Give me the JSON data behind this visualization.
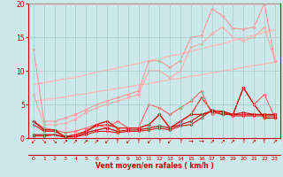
{
  "background_color": "#cce8e8",
  "grid_color": "#aacece",
  "x_values": [
    0,
    1,
    2,
    3,
    4,
    5,
    6,
    7,
    8,
    9,
    10,
    11,
    12,
    13,
    14,
    15,
    16,
    17,
    18,
    19,
    20,
    21,
    22,
    23
  ],
  "xlabel": "Vent moyen/en rafales ( km/h )",
  "ylim": [
    0,
    20
  ],
  "yticks": [
    0,
    5,
    10,
    15,
    20
  ],
  "series": [
    {
      "name": "upper_band_top",
      "color": "#ffbbbb",
      "linewidth": 1.0,
      "marker": null,
      "markersize": 0,
      "values": [
        8.0,
        8.2,
        8.5,
        8.8,
        9.0,
        9.4,
        9.8,
        10.1,
        10.4,
        10.8,
        11.1,
        11.5,
        11.8,
        12.2,
        12.5,
        12.9,
        13.3,
        13.7,
        14.0,
        14.5,
        14.9,
        15.3,
        15.7,
        16.1
      ]
    },
    {
      "name": "upper_band_bottom",
      "color": "#ffbbbb",
      "linewidth": 1.0,
      "marker": null,
      "markersize": 0,
      "values": [
        5.5,
        5.7,
        5.9,
        6.1,
        6.4,
        6.6,
        6.9,
        7.1,
        7.4,
        7.6,
        7.9,
        8.1,
        8.4,
        8.7,
        8.9,
        9.2,
        9.4,
        9.7,
        10.0,
        10.2,
        10.5,
        10.8,
        11.0,
        11.3
      ]
    },
    {
      "name": "upper_line1",
      "color": "#ff9999",
      "linewidth": 0.8,
      "marker": "D",
      "markersize": 1.8,
      "values": [
        13.2,
        2.5,
        2.5,
        3.0,
        3.5,
        4.2,
        5.0,
        5.5,
        6.0,
        6.5,
        7.0,
        11.5,
        11.5,
        10.5,
        11.5,
        15.0,
        15.2,
        19.2,
        18.2,
        16.3,
        16.2,
        16.5,
        20.0,
        11.5
      ]
    },
    {
      "name": "upper_line2",
      "color": "#ffaaaa",
      "linewidth": 0.8,
      "marker": "D",
      "markersize": 1.8,
      "values": [
        6.5,
        2.0,
        2.0,
        2.2,
        2.8,
        3.8,
        4.5,
        5.0,
        5.5,
        6.0,
        6.5,
        10.0,
        10.0,
        9.0,
        10.0,
        13.5,
        14.0,
        15.5,
        16.5,
        15.0,
        14.5,
        15.0,
        16.5,
        11.5
      ]
    },
    {
      "name": "mid_line",
      "color": "#ff6666",
      "linewidth": 0.8,
      "marker": "D",
      "markersize": 1.8,
      "values": [
        2.5,
        1.5,
        1.2,
        0.8,
        1.0,
        1.5,
        2.0,
        1.5,
        2.5,
        1.5,
        1.5,
        5.0,
        4.5,
        3.5,
        4.5,
        5.5,
        7.0,
        3.5,
        4.0,
        3.5,
        7.5,
        5.0,
        6.5,
        3.0
      ]
    },
    {
      "name": "lower_line1",
      "color": "#cc0000",
      "linewidth": 0.9,
      "marker": "D",
      "markersize": 1.8,
      "values": [
        2.5,
        1.2,
        1.2,
        0.2,
        0.5,
        1.0,
        2.0,
        2.5,
        1.5,
        1.5,
        1.5,
        2.0,
        3.5,
        1.5,
        2.5,
        3.5,
        3.5,
        4.0,
        3.5,
        3.5,
        7.5,
        5.0,
        3.0,
        3.0
      ]
    },
    {
      "name": "lower_line2",
      "color": "#ee2222",
      "linewidth": 0.8,
      "marker": "D",
      "markersize": 1.6,
      "values": [
        2.0,
        1.0,
        1.0,
        0.2,
        0.5,
        1.0,
        1.8,
        2.0,
        1.5,
        1.5,
        1.5,
        2.0,
        3.5,
        1.5,
        2.5,
        3.5,
        6.0,
        4.0,
        3.5,
        3.5,
        3.5,
        3.5,
        3.5,
        3.5
      ]
    },
    {
      "name": "lower_line3",
      "color": "#bb0000",
      "linewidth": 0.8,
      "marker": "D",
      "markersize": 1.6,
      "values": [
        0.5,
        0.5,
        0.5,
        0.2,
        0.2,
        0.8,
        1.2,
        1.5,
        1.0,
        1.2,
        1.2,
        1.5,
        1.8,
        1.5,
        2.0,
        2.5,
        3.5,
        4.0,
        4.0,
        3.5,
        3.8,
        3.5,
        3.5,
        3.5
      ]
    },
    {
      "name": "lower_line4",
      "color": "#dd1111",
      "linewidth": 0.8,
      "marker": "D",
      "markersize": 1.6,
      "values": [
        0.3,
        0.3,
        0.5,
        0.1,
        0.2,
        0.5,
        1.0,
        1.0,
        0.8,
        1.0,
        1.0,
        1.2,
        1.5,
        1.2,
        1.8,
        2.0,
        3.0,
        4.2,
        3.8,
        3.3,
        3.3,
        3.3,
        3.3,
        3.3
      ]
    }
  ],
  "wind_arrows": [
    "↙",
    "↘",
    "↘",
    "↗",
    "↗",
    "↗",
    "↗",
    "↙",
    "↑",
    "↙",
    "↑",
    "↙",
    "↑",
    "↙",
    "↑",
    "→",
    "→",
    "↗",
    "↗",
    "↗",
    "↑",
    "↗",
    "↑",
    "↗"
  ]
}
